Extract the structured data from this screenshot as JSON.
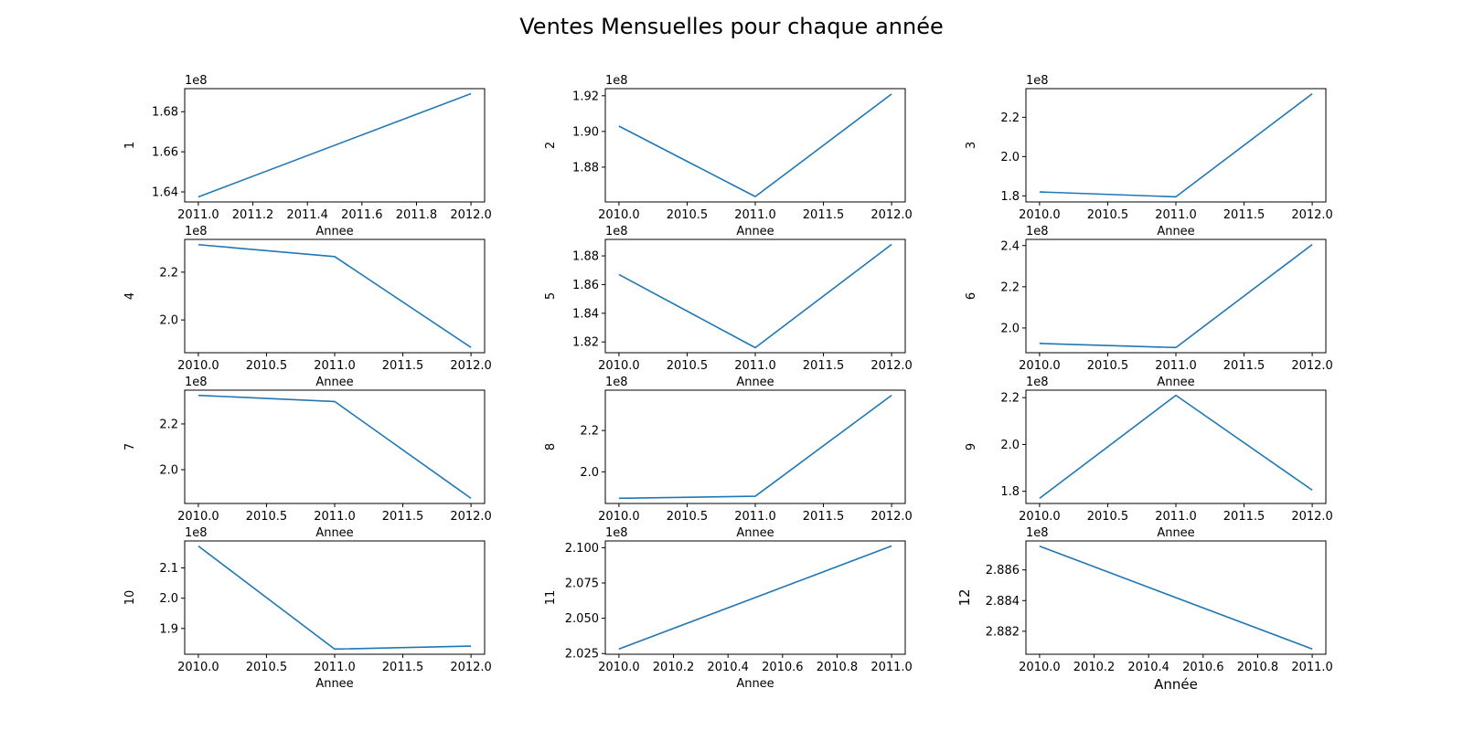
{
  "title": "Ventes Mensuelles pour chaque année",
  "chart_data": [
    {
      "type": "line",
      "ylabel": "1",
      "xlabel": "Annee",
      "offset": "1e8",
      "x": [
        2011.0,
        2012.0
      ],
      "y": [
        1.6375,
        1.689
      ],
      "xlim": [
        2010.95,
        2012.05
      ],
      "ylim": [
        1.635,
        1.6915
      ],
      "xticks": [
        2011.0,
        2011.2,
        2011.4,
        2011.6,
        2011.8,
        2012.0
      ],
      "xtick_labels": [
        "2011.0",
        "2011.2",
        "2011.4",
        "2011.6",
        "2011.8",
        "2012.0"
      ],
      "yticks": [
        1.64,
        1.66,
        1.68
      ],
      "ytick_labels": [
        "1.64",
        "1.66",
        "1.68"
      ]
    },
    {
      "type": "line",
      "ylabel": "2",
      "xlabel": "Annee",
      "offset": "1e8",
      "x": [
        2010.0,
        2011.0,
        2012.0
      ],
      "y": [
        1.903,
        1.8635,
        1.921
      ],
      "xlim": [
        2009.9,
        2012.1
      ],
      "ylim": [
        1.8605,
        1.924
      ],
      "xticks": [
        2010.0,
        2010.5,
        2011.0,
        2011.5,
        2012.0
      ],
      "xtick_labels": [
        "2010.0",
        "2010.5",
        "2011.0",
        "2011.5",
        "2012.0"
      ],
      "yticks": [
        1.88,
        1.9,
        1.92
      ],
      "ytick_labels": [
        "1.88",
        "1.90",
        "1.92"
      ]
    },
    {
      "type": "line",
      "ylabel": "3",
      "xlabel": "Annee",
      "offset": "1e8",
      "x": [
        2010.0,
        2011.0,
        2012.0
      ],
      "y": [
        1.82,
        1.795,
        2.32
      ],
      "xlim": [
        2009.9,
        2012.1
      ],
      "ylim": [
        1.769,
        2.346
      ],
      "xticks": [
        2010.0,
        2010.5,
        2011.0,
        2011.5,
        2012.0
      ],
      "xtick_labels": [
        "2010.0",
        "2010.5",
        "2011.0",
        "2011.5",
        "2012.0"
      ],
      "yticks": [
        1.8,
        2.0,
        2.2
      ],
      "ytick_labels": [
        "1.8",
        "2.0",
        "2.2"
      ]
    },
    {
      "type": "line",
      "ylabel": "4",
      "xlabel": "Annee",
      "offset": "1e8",
      "x": [
        2010.0,
        2011.0,
        2012.0
      ],
      "y": [
        2.315,
        2.265,
        1.885
      ],
      "xlim": [
        2009.9,
        2012.1
      ],
      "ylim": [
        1.863,
        2.337
      ],
      "xticks": [
        2010.0,
        2010.5,
        2011.0,
        2011.5,
        2012.0
      ],
      "xtick_labels": [
        "2010.0",
        "2010.5",
        "2011.0",
        "2011.5",
        "2012.0"
      ],
      "yticks": [
        2.0,
        2.2
      ],
      "ytick_labels": [
        "2.0",
        "2.2"
      ]
    },
    {
      "type": "line",
      "ylabel": "5",
      "xlabel": "Annee",
      "offset": "1e8",
      "x": [
        2010.0,
        2011.0,
        2012.0
      ],
      "y": [
        1.867,
        1.816,
        1.888
      ],
      "xlim": [
        2009.9,
        2012.1
      ],
      "ylim": [
        1.8125,
        1.8915
      ],
      "xticks": [
        2010.0,
        2010.5,
        2011.0,
        2011.5,
        2012.0
      ],
      "xtick_labels": [
        "2010.0",
        "2010.5",
        "2011.0",
        "2011.5",
        "2012.0"
      ],
      "yticks": [
        1.82,
        1.84,
        1.86,
        1.88
      ],
      "ytick_labels": [
        "1.82",
        "1.84",
        "1.86",
        "1.88"
      ]
    },
    {
      "type": "line",
      "ylabel": "6",
      "xlabel": "Annee",
      "offset": "1e8",
      "x": [
        2010.0,
        2011.0,
        2012.0
      ],
      "y": [
        1.925,
        1.905,
        2.405
      ],
      "xlim": [
        2009.9,
        2012.1
      ],
      "ylim": [
        1.88,
        2.43
      ],
      "xticks": [
        2010.0,
        2010.5,
        2011.0,
        2011.5,
        2012.0
      ],
      "xtick_labels": [
        "2010.0",
        "2010.5",
        "2011.0",
        "2011.5",
        "2012.0"
      ],
      "yticks": [
        2.0,
        2.2,
        2.4
      ],
      "ytick_labels": [
        "2.0",
        "2.2",
        "2.4"
      ]
    },
    {
      "type": "line",
      "ylabel": "7",
      "xlabel": "Annee",
      "offset": "1e8",
      "x": [
        2010.0,
        2011.0,
        2012.0
      ],
      "y": [
        2.325,
        2.298,
        1.875
      ],
      "xlim": [
        2009.9,
        2012.1
      ],
      "ylim": [
        1.8525,
        2.3475
      ],
      "xticks": [
        2010.0,
        2010.5,
        2011.0,
        2011.5,
        2012.0
      ],
      "xtick_labels": [
        "2010.0",
        "2010.5",
        "2011.0",
        "2011.5",
        "2012.0"
      ],
      "yticks": [
        2.0,
        2.2
      ],
      "ytick_labels": [
        "2.0",
        "2.2"
      ]
    },
    {
      "type": "line",
      "ylabel": "8",
      "xlabel": "Annee",
      "offset": "1e8",
      "x": [
        2010.0,
        2011.0,
        2012.0
      ],
      "y": [
        1.872,
        1.882,
        2.37
      ],
      "xlim": [
        2009.9,
        2012.1
      ],
      "ylim": [
        1.847,
        2.395
      ],
      "xticks": [
        2010.0,
        2010.5,
        2011.0,
        2011.5,
        2012.0
      ],
      "xtick_labels": [
        "2010.0",
        "2010.5",
        "2011.0",
        "2011.5",
        "2012.0"
      ],
      "yticks": [
        2.0,
        2.2
      ],
      "ytick_labels": [
        "2.0",
        "2.2"
      ]
    },
    {
      "type": "line",
      "ylabel": "9",
      "xlabel": "Annee",
      "offset": "1e8",
      "x": [
        2010.0,
        2011.0,
        2012.0
      ],
      "y": [
        1.77,
        2.21,
        1.805
      ],
      "xlim": [
        2009.9,
        2012.1
      ],
      "ylim": [
        1.748,
        2.232
      ],
      "xticks": [
        2010.0,
        2010.5,
        2011.0,
        2011.5,
        2012.0
      ],
      "xtick_labels": [
        "2010.0",
        "2010.5",
        "2011.0",
        "2011.5",
        "2012.0"
      ],
      "yticks": [
        1.8,
        2.0,
        2.2
      ],
      "ytick_labels": [
        "1.8",
        "2.0",
        "2.2"
      ]
    },
    {
      "type": "line",
      "ylabel": "10",
      "xlabel": "Annee",
      "offset": "1e8",
      "x": [
        2010.0,
        2011.0,
        2012.0
      ],
      "y": [
        2.172,
        1.832,
        1.842
      ],
      "xlim": [
        2009.9,
        2012.1
      ],
      "ylim": [
        1.815,
        2.189
      ],
      "xticks": [
        2010.0,
        2010.5,
        2011.0,
        2011.5,
        2012.0
      ],
      "xtick_labels": [
        "2010.0",
        "2010.5",
        "2011.0",
        "2011.5",
        "2012.0"
      ],
      "yticks": [
        1.9,
        2.0,
        2.1
      ],
      "ytick_labels": [
        "1.9",
        "2.0",
        "2.1"
      ]
    },
    {
      "type": "line",
      "ylabel": "11",
      "xlabel": "Annee",
      "offset": "1e8",
      "x": [
        2010.0,
        2011.0
      ],
      "y": [
        2.0282,
        2.1012
      ],
      "xlim": [
        2009.95,
        2011.05
      ],
      "ylim": [
        2.0245,
        2.1048
      ],
      "xticks": [
        2010.0,
        2010.2,
        2010.4,
        2010.6,
        2010.8,
        2011.0
      ],
      "xtick_labels": [
        "2010.0",
        "2010.2",
        "2010.4",
        "2010.6",
        "2010.8",
        "2011.0"
      ],
      "yticks": [
        2.025,
        2.05,
        2.075,
        2.1
      ],
      "ytick_labels": [
        "2.025",
        "2.050",
        "2.075",
        "2.100"
      ]
    },
    {
      "type": "line",
      "ylabel": "12",
      "xlabel": "Année",
      "offset": "1e8",
      "big_labels": true,
      "x": [
        2010.0,
        2011.0
      ],
      "y": [
        2.88755,
        2.88084
      ],
      "xlim": [
        2009.95,
        2011.05
      ],
      "ylim": [
        2.8805,
        2.88789
      ],
      "xticks": [
        2010.0,
        2010.2,
        2010.4,
        2010.6,
        2010.8,
        2011.0
      ],
      "xtick_labels": [
        "2010.0",
        "2010.2",
        "2010.4",
        "2010.6",
        "2010.8",
        "2011.0"
      ],
      "yticks": [
        2.882,
        2.884,
        2.886
      ],
      "ytick_labels": [
        "2.882",
        "2.884",
        "2.886"
      ]
    }
  ]
}
